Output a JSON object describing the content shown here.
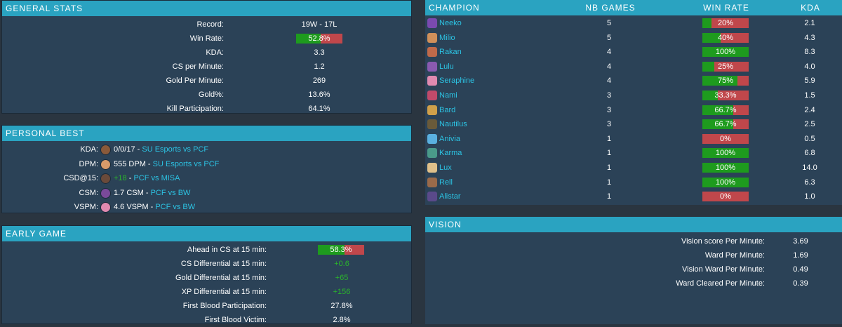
{
  "general": {
    "title": "GENERAL STATS",
    "rows": [
      {
        "label": "Record:",
        "value": "19W - 17L"
      },
      {
        "label": "Win Rate:",
        "value": "52.8%",
        "bar": 52.8
      },
      {
        "label": "KDA:",
        "value": "3.3"
      },
      {
        "label": "CS per Minute:",
        "value": "1.2"
      },
      {
        "label": "Gold Per Minute:",
        "value": "269"
      },
      {
        "label": "Gold%:",
        "value": "13.6%"
      },
      {
        "label": "Kill Participation:",
        "value": "64.1%"
      }
    ]
  },
  "personal": {
    "title": "PERSONAL BEST",
    "rows": [
      {
        "label": "KDA:",
        "value": "0/0/17",
        "sep": " - ",
        "link": "SU Esports vs PCF",
        "icon_color": "#8a5a3a",
        "green": false
      },
      {
        "label": "DPM:",
        "value": "555 DPM",
        "sep": " - ",
        "link": "SU Esports vs PCF",
        "icon_color": "#d89a6a",
        "green": false
      },
      {
        "label": "CSD@15:",
        "value": "+18",
        "sep": " - ",
        "link": "PCF vs MISA",
        "icon_color": "#6a4a3a",
        "green": true
      },
      {
        "label": "CSM:",
        "value": "1.7 CSM",
        "sep": " - ",
        "link": "PCF vs BW",
        "icon_color": "#7a4a9a",
        "green": false
      },
      {
        "label": "VSPM:",
        "value": "4.6 VSPM",
        "sep": " - ",
        "link": "PCF vs BW",
        "icon_color": "#e08ab0",
        "green": false
      }
    ]
  },
  "early": {
    "title": "EARLY GAME",
    "rows": [
      {
        "label": "Ahead in CS at 15 min:",
        "value": "58.3%",
        "bar": 58.3,
        "green": false
      },
      {
        "label": "CS Differential at 15 min:",
        "value": "+0.6",
        "green": true
      },
      {
        "label": "Gold Differential at 15 min:",
        "value": "+65",
        "green": true
      },
      {
        "label": "XP Differential at 15 min:",
        "value": "+156",
        "green": true
      },
      {
        "label": "First Blood Participation:",
        "value": "27.8%",
        "green": false
      },
      {
        "label": "First Blood Victim:",
        "value": "2.8%",
        "green": false
      }
    ]
  },
  "champions": {
    "headers": {
      "champion": "CHAMPION",
      "games": "NB GAMES",
      "winrate": "WIN RATE",
      "kda": "KDA"
    },
    "rows": [
      {
        "name": "Neeko",
        "games": "5",
        "winrate": "20%",
        "wr": 20,
        "kda": "2.1",
        "icon_color": "#7a4ab0"
      },
      {
        "name": "Milio",
        "games": "5",
        "winrate": "40%",
        "wr": 40,
        "kda": "4.3",
        "icon_color": "#d0905a"
      },
      {
        "name": "Rakan",
        "games": "4",
        "winrate": "100%",
        "wr": 100,
        "kda": "8.3",
        "icon_color": "#c06a4a"
      },
      {
        "name": "Lulu",
        "games": "4",
        "winrate": "25%",
        "wr": 25,
        "kda": "4.0",
        "icon_color": "#8a5ab0"
      },
      {
        "name": "Seraphine",
        "games": "4",
        "winrate": "75%",
        "wr": 75,
        "kda": "5.9",
        "icon_color": "#e08ab0"
      },
      {
        "name": "Nami",
        "games": "3",
        "winrate": "33.3%",
        "wr": 33.3,
        "kda": "1.5",
        "icon_color": "#c04a6a"
      },
      {
        "name": "Bard",
        "games": "3",
        "winrate": "66.7%",
        "wr": 66.7,
        "kda": "2.4",
        "icon_color": "#d0a04a"
      },
      {
        "name": "Nautilus",
        "games": "3",
        "winrate": "66.7%",
        "wr": 66.7,
        "kda": "2.5",
        "icon_color": "#6a5a3a"
      },
      {
        "name": "Anivia",
        "games": "1",
        "winrate": "0%",
        "wr": 0,
        "kda": "0.5",
        "icon_color": "#5ab0e0"
      },
      {
        "name": "Karma",
        "games": "1",
        "winrate": "100%",
        "wr": 100,
        "kda": "6.8",
        "icon_color": "#4a9a8a"
      },
      {
        "name": "Lux",
        "games": "1",
        "winrate": "100%",
        "wr": 100,
        "kda": "14.0",
        "icon_color": "#e0c08a"
      },
      {
        "name": "Rell",
        "games": "1",
        "winrate": "100%",
        "wr": 100,
        "kda": "6.3",
        "icon_color": "#9a6a4a"
      },
      {
        "name": "Alistar",
        "games": "1",
        "winrate": "0%",
        "wr": 0,
        "kda": "1.0",
        "icon_color": "#5a4a8a"
      }
    ]
  },
  "vision": {
    "title": "VISION",
    "rows": [
      {
        "label": "Vision score Per Minute:",
        "value": "3.69"
      },
      {
        "label": "Ward Per Minute:",
        "value": "1.69"
      },
      {
        "label": "Vision Ward Per Minute:",
        "value": "0.49"
      },
      {
        "label": "Ward Cleared Per Minute:",
        "value": "0.39"
      }
    ]
  },
  "colors": {
    "header": "#2aa3c1",
    "panel": "#2b4257",
    "bar_green": "#1e9b1e",
    "bar_red": "#c0474b",
    "link": "#2cc3e3",
    "positive": "#2bb52b"
  }
}
